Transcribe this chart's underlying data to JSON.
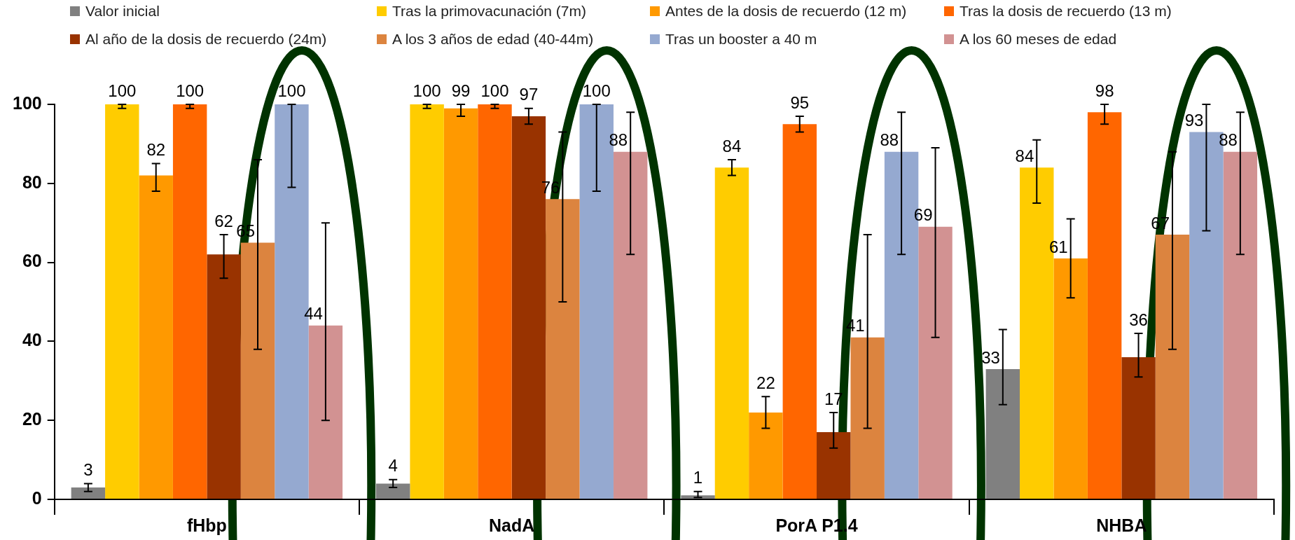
{
  "chart_data": {
    "type": "bar",
    "categories": [
      "fHbp",
      "NadA",
      "PorA P1.4",
      "NHBA"
    ],
    "series": [
      {
        "name": "Valor inicial",
        "color": "#808080",
        "values": [
          3,
          4,
          1,
          33
        ],
        "errors": [
          [
            2,
            4
          ],
          [
            3,
            5
          ],
          [
            0.5,
            2
          ],
          [
            24,
            43
          ]
        ]
      },
      {
        "name": "Tras la primovacunación (7m)",
        "color": "#ffcc00",
        "values": [
          100,
          100,
          84,
          84
        ],
        "errors": [
          [
            99,
            100
          ],
          [
            99,
            100
          ],
          [
            82,
            86
          ],
          [
            75,
            91
          ]
        ]
      },
      {
        "name": "Antes de la dosis de recuerdo (12 m)",
        "color": "#ff9900",
        "values": [
          82,
          99,
          22,
          61
        ],
        "errors": [
          [
            78,
            85
          ],
          [
            97,
            100
          ],
          [
            18,
            26
          ],
          [
            51,
            71
          ]
        ]
      },
      {
        "name": "Tras la dosis de recuerdo (13 m)",
        "color": "#ff6600",
        "values": [
          100,
          100,
          95,
          98
        ],
        "errors": [
          [
            99,
            100
          ],
          [
            99,
            100
          ],
          [
            93,
            97
          ],
          [
            95,
            100
          ]
        ]
      },
      {
        "name": "Al año de la dosis de recuerdo (24m)",
        "color": "#993300",
        "values": [
          62,
          97,
          17,
          36
        ],
        "errors": [
          [
            56,
            67
          ],
          [
            95,
            99
          ],
          [
            13,
            22
          ],
          [
            31,
            42
          ]
        ]
      },
      {
        "name": "A los 3 años de edad (40-44m)",
        "color": "#dc843f",
        "values": [
          65,
          76,
          41,
          67
        ],
        "errors": [
          [
            38,
            86
          ],
          [
            50,
            93
          ],
          [
            18,
            67
          ],
          [
            38,
            88
          ]
        ]
      },
      {
        "name": "Tras un booster a 40 m",
        "color": "#95a9d0",
        "values": [
          100,
          100,
          88,
          93
        ],
        "errors": [
          [
            79,
            100
          ],
          [
            78,
            100
          ],
          [
            62,
            98
          ],
          [
            68,
            100
          ]
        ]
      },
      {
        "name": "A los 60 meses de edad",
        "color": "#d29292",
        "values": [
          44,
          88,
          69,
          88
        ],
        "errors": [
          [
            20,
            70
          ],
          [
            62,
            98
          ],
          [
            41,
            89
          ],
          [
            62,
            98
          ]
        ]
      }
    ],
    "ylim": [
      0,
      100
    ],
    "yticks": [
      0,
      20,
      40,
      60,
      80,
      100
    ],
    "grid": false,
    "legend": "top",
    "data_labels": true
  }
}
